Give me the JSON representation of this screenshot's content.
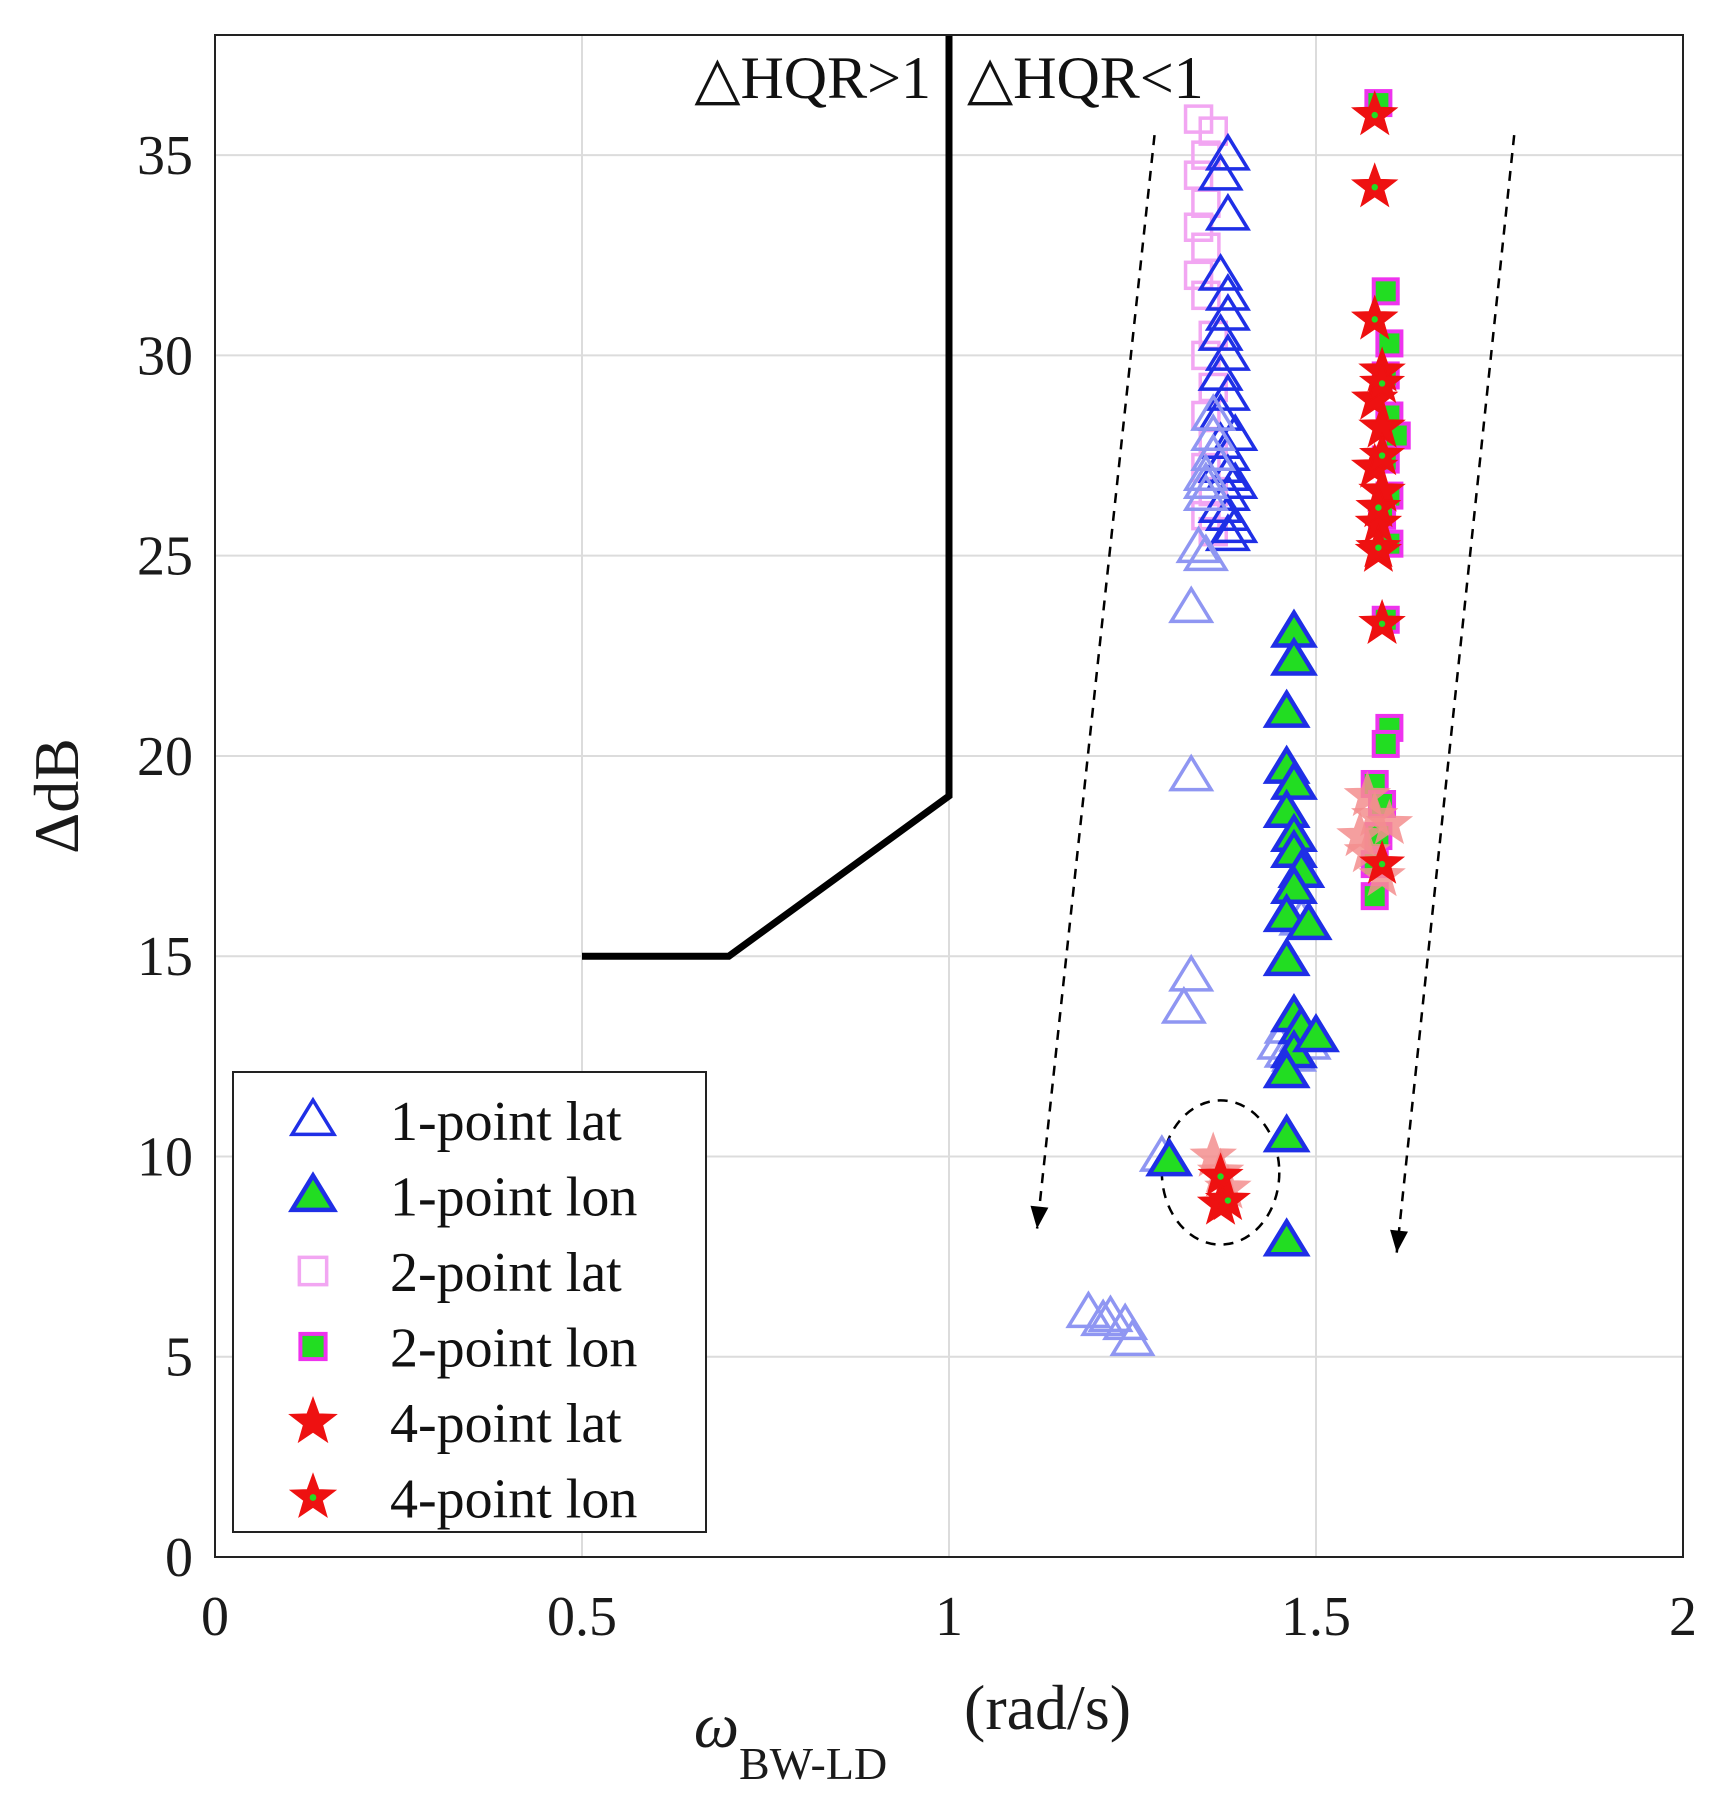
{
  "chart_data": {
    "type": "scatter",
    "title": "",
    "xlabel_main": "ω",
    "xlabel_sub": "BW-LD",
    "xlabel_units": "(rad/s)",
    "ylabel": "ΔdB",
    "xlim": [
      0,
      2
    ],
    "ylim": [
      0,
      38
    ],
    "xticks": [
      0,
      0.5,
      1,
      1.5,
      2
    ],
    "xtick_labels": [
      "0",
      "0.5",
      "1",
      "1.5",
      "2"
    ],
    "yticks": [
      0,
      5,
      10,
      15,
      20,
      25,
      30,
      35
    ],
    "ytick_labels": [
      "0",
      "5",
      "10",
      "15",
      "20",
      "25",
      "30",
      "35"
    ],
    "grid": true,
    "legend_position": "bottom-left",
    "region_labels": [
      "△HQR>1",
      "△HQR<1"
    ],
    "boundary": {
      "name": "HQR boundary",
      "x": [
        0.5,
        0.7,
        1.0,
        1.0
      ],
      "y": [
        15,
        15,
        19,
        38
      ]
    },
    "trend_arrows": [
      {
        "from": [
          1.28,
          35.5
        ],
        "to": [
          1.12,
          8.2
        ]
      },
      {
        "from": [
          1.77,
          35.5
        ],
        "to": [
          1.61,
          7.6
        ]
      }
    ],
    "highlight_circle": {
      "center": [
        1.37,
        9.6
      ],
      "radius_x": 0.08,
      "radius_y": 1.8
    },
    "colors": {
      "lat_triangle": "#1f2fe6",
      "lat_triangle_faded": "#8f96f2",
      "lon_fill": "#22dd22",
      "square_edge": "#ee33ee",
      "square_faded": "#f2a6f2",
      "star": "#ee1111",
      "star_faded": "#f48f8f"
    },
    "series": [
      {
        "name": "1-point lat",
        "marker": "triangle-open",
        "points": [
          [
            1.38,
            35
          ],
          [
            1.37,
            34.5
          ],
          [
            1.38,
            33.5
          ],
          [
            1.37,
            32
          ],
          [
            1.38,
            31.5
          ],
          [
            1.38,
            31
          ],
          [
            1.37,
            30.5
          ],
          [
            1.38,
            30
          ],
          [
            1.37,
            29.5
          ],
          [
            1.38,
            29
          ],
          [
            1.37,
            28.5
          ],
          [
            1.39,
            28
          ],
          [
            1.37,
            27.8
          ],
          [
            1.38,
            27.5
          ],
          [
            1.37,
            27.2
          ],
          [
            1.38,
            27
          ],
          [
            1.39,
            26.8
          ],
          [
            1.38,
            26.5
          ],
          [
            1.37,
            26.2
          ],
          [
            1.38,
            26
          ],
          [
            1.39,
            25.7
          ],
          [
            1.38,
            25.5
          ],
          [
            1.35,
            26.5
          ],
          [
            1.35,
            26.8
          ],
          [
            1.35,
            27
          ],
          [
            1.36,
            27.5
          ],
          [
            1.36,
            28
          ],
          [
            1.36,
            28.5
          ],
          [
            1.35,
            25
          ],
          [
            1.34,
            25.2
          ],
          [
            1.33,
            23.7
          ],
          [
            1.33,
            19.5
          ],
          [
            1.33,
            14.5
          ],
          [
            1.32,
            13.7
          ],
          [
            1.19,
            6.1
          ],
          [
            1.21,
            5.9
          ],
          [
            1.22,
            6.0
          ],
          [
            1.24,
            5.8
          ],
          [
            1.25,
            5.4
          ],
          [
            1.29,
            10
          ],
          [
            1.46,
            13.2
          ],
          [
            1.45,
            12.8
          ],
          [
            1.47,
            12.5
          ],
          [
            1.48,
            13.0
          ],
          [
            1.5,
            13.0
          ],
          [
            1.49,
            12.8
          ],
          [
            1.46,
            12.6
          ],
          [
            1.48,
            15.9
          ],
          [
            1.49,
            15.8
          ]
        ],
        "faded": [
          0,
          0,
          0,
          0,
          0,
          0,
          0,
          0,
          0,
          0,
          0,
          0,
          0,
          0,
          0,
          0,
          0,
          0,
          0,
          0,
          0,
          0,
          1,
          1,
          1,
          1,
          1,
          1,
          1,
          1,
          1,
          1,
          1,
          1,
          1,
          1,
          1,
          1,
          1,
          1,
          1,
          1,
          1,
          1,
          1,
          1,
          1,
          1,
          1
        ]
      },
      {
        "name": "1-point lon",
        "marker": "triangle-filled",
        "points": [
          [
            1.47,
            23.1
          ],
          [
            1.47,
            22.4
          ],
          [
            1.46,
            21.1
          ],
          [
            1.46,
            19.7
          ],
          [
            1.47,
            19.3
          ],
          [
            1.46,
            18.6
          ],
          [
            1.47,
            18.0
          ],
          [
            1.47,
            17.6
          ],
          [
            1.48,
            17.1
          ],
          [
            1.47,
            16.7
          ],
          [
            1.46,
            16.0
          ],
          [
            1.49,
            15.8
          ],
          [
            1.46,
            14.9
          ],
          [
            1.47,
            13.5
          ],
          [
            1.48,
            13.2
          ],
          [
            1.47,
            12.6
          ],
          [
            1.46,
            12.1
          ],
          [
            1.5,
            13.0
          ],
          [
            1.46,
            10.5
          ],
          [
            1.46,
            7.9
          ],
          [
            1.3,
            9.9
          ]
        ]
      },
      {
        "name": "2-point lat",
        "marker": "square-open",
        "points": [
          [
            1.34,
            35.9
          ],
          [
            1.36,
            35.6
          ],
          [
            1.35,
            35.0
          ],
          [
            1.34,
            34.5
          ],
          [
            1.35,
            33.8
          ],
          [
            1.34,
            33.2
          ],
          [
            1.35,
            32.7
          ],
          [
            1.34,
            32.0
          ],
          [
            1.35,
            31.5
          ],
          [
            1.36,
            30.5
          ],
          [
            1.35,
            30.0
          ],
          [
            1.36,
            29.2
          ],
          [
            1.35,
            28.5
          ],
          [
            1.36,
            27.8
          ],
          [
            1.35,
            27.2
          ],
          [
            1.36,
            26.6
          ],
          [
            1.35,
            26.0
          ],
          [
            1.36,
            25.6
          ]
        ]
      },
      {
        "name": "2-point lon",
        "marker": "square-filled",
        "points": [
          [
            1.585,
            36.3
          ],
          [
            1.595,
            31.6
          ],
          [
            1.6,
            30.3
          ],
          [
            1.595,
            29.5
          ],
          [
            1.6,
            28.5
          ],
          [
            1.61,
            28.0
          ],
          [
            1.595,
            27.4
          ],
          [
            1.6,
            26.5
          ],
          [
            1.59,
            26.0
          ],
          [
            1.6,
            25.3
          ],
          [
            1.595,
            23.4
          ],
          [
            1.6,
            20.7
          ],
          [
            1.595,
            20.3
          ],
          [
            1.58,
            19.3
          ],
          [
            1.59,
            18.8
          ],
          [
            1.585,
            18.0
          ],
          [
            1.58,
            17.3
          ],
          [
            1.58,
            16.5
          ]
        ]
      },
      {
        "name": "4-point lat",
        "marker": "star-open",
        "points": [
          [
            1.58,
            36.0
          ],
          [
            1.58,
            34.2
          ],
          [
            1.58,
            30.9
          ],
          [
            1.59,
            29.6
          ],
          [
            1.58,
            28.9
          ],
          [
            1.59,
            28.2
          ],
          [
            1.58,
            27.2
          ],
          [
            1.59,
            26.6
          ],
          [
            1.585,
            25.8
          ],
          [
            1.585,
            25.1
          ],
          [
            1.59,
            23.3
          ],
          [
            1.57,
            19.0
          ],
          [
            1.58,
            18.5
          ],
          [
            1.56,
            18.0
          ],
          [
            1.57,
            17.6
          ],
          [
            1.59,
            17.0
          ],
          [
            1.6,
            18.3
          ],
          [
            1.36,
            10.0
          ],
          [
            1.37,
            9.6
          ],
          [
            1.38,
            9.2
          ],
          [
            1.37,
            8.8
          ]
        ],
        "faded": [
          0,
          0,
          0,
          0,
          0,
          0,
          0,
          0,
          0,
          0,
          0,
          1,
          1,
          1,
          1,
          1,
          1,
          1,
          1,
          1,
          0
        ]
      },
      {
        "name": "4-point lon",
        "marker": "star-filled",
        "points": [
          [
            1.58,
            36.0
          ],
          [
            1.58,
            34.2
          ],
          [
            1.58,
            30.9
          ],
          [
            1.59,
            29.3
          ],
          [
            1.59,
            27.5
          ],
          [
            1.585,
            26.2
          ],
          [
            1.585,
            25.2
          ],
          [
            1.59,
            23.3
          ],
          [
            1.59,
            17.3
          ],
          [
            1.37,
            9.5
          ],
          [
            1.38,
            8.9
          ]
        ]
      }
    ]
  }
}
